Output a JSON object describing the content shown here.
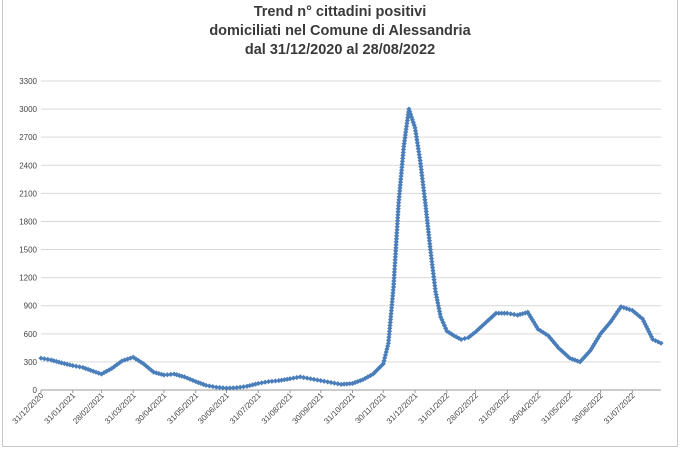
{
  "chart_data": {
    "type": "line",
    "title_lines": [
      "Trend n° cittadini positivi",
      "domiciliati nel Comune di Alessandria",
      "dal 31/12/2020 al 28/08/2022"
    ],
    "xlabel": "",
    "ylabel": "",
    "ylim": [
      0,
      3300
    ],
    "yticks": [
      0,
      300,
      600,
      900,
      1200,
      1500,
      1800,
      2100,
      2400,
      2700,
      3000,
      3300
    ],
    "xticks": [
      "31/12/2020",
      "31/01/2021",
      "28/02/2021",
      "31/03/2021",
      "30/04/2021",
      "31/05/2021",
      "30/06/2021",
      "31/07/2021",
      "31/08/2021",
      "30/09/2021",
      "31/10/2021",
      "30/11/2021",
      "31/12/2021",
      "31/01/2022",
      "28/02/2022",
      "31/03/2022",
      "30/04/2022",
      "31/05/2022",
      "30/06/2022",
      "31/07/2022"
    ],
    "xlim": [
      "2020-12-31",
      "2022-08-28"
    ],
    "grid": true,
    "marker": "diamond",
    "line_color": "#4a7ebb",
    "series": [
      {
        "x": [
          "2020-12-31",
          "2021-01-10",
          "2021-01-20",
          "2021-01-31",
          "2021-02-10",
          "2021-02-20",
          "2021-02-28",
          "2021-03-10",
          "2021-03-20",
          "2021-03-31",
          "2021-04-10",
          "2021-04-20",
          "2021-04-30",
          "2021-05-10",
          "2021-05-20",
          "2021-05-31",
          "2021-06-10",
          "2021-06-20",
          "2021-06-30",
          "2021-07-10",
          "2021-07-20",
          "2021-07-31",
          "2021-08-10",
          "2021-08-20",
          "2021-08-31",
          "2021-09-10",
          "2021-09-20",
          "2021-09-30",
          "2021-10-10",
          "2021-10-20",
          "2021-10-31",
          "2021-11-10",
          "2021-11-20",
          "2021-11-30",
          "2021-12-05",
          "2021-12-10",
          "2021-12-15",
          "2021-12-20",
          "2021-12-25",
          "2021-12-31",
          "2022-01-05",
          "2022-01-10",
          "2022-01-15",
          "2022-01-20",
          "2022-01-25",
          "2022-01-31",
          "2022-02-07",
          "2022-02-14",
          "2022-02-21",
          "2022-02-28",
          "2022-03-10",
          "2022-03-20",
          "2022-03-31",
          "2022-04-10",
          "2022-04-20",
          "2022-04-30",
          "2022-05-10",
          "2022-05-20",
          "2022-05-31",
          "2022-06-10",
          "2022-06-20",
          "2022-06-30",
          "2022-07-10",
          "2022-07-20",
          "2022-07-31",
          "2022-08-10",
          "2022-08-20",
          "2022-08-28"
        ],
        "values": [
          340,
          320,
          290,
          260,
          240,
          200,
          170,
          230,
          310,
          350,
          280,
          190,
          160,
          170,
          140,
          90,
          50,
          30,
          20,
          25,
          40,
          70,
          90,
          100,
          120,
          140,
          120,
          100,
          80,
          60,
          70,
          110,
          170,
          280,
          500,
          1100,
          2000,
          2600,
          3000,
          2800,
          2450,
          2000,
          1500,
          1050,
          780,
          630,
          580,
          540,
          560,
          620,
          720,
          820,
          820,
          800,
          830,
          650,
          580,
          450,
          340,
          300,
          420,
          600,
          730,
          890,
          850,
          760,
          540,
          500
        ]
      }
    ]
  }
}
